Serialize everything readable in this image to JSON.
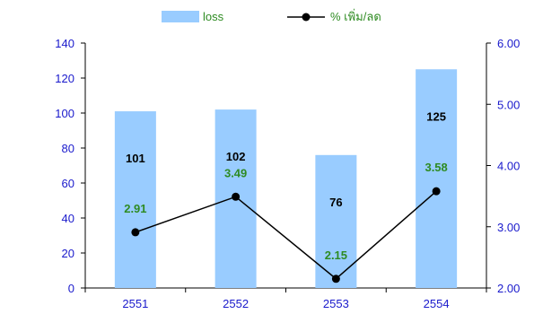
{
  "chart_data": {
    "type": "bar",
    "categories": [
      "2551",
      "2552",
      "2553",
      "2554"
    ],
    "series": [
      {
        "name": "loss",
        "type": "bar",
        "axis": "left",
        "values": [
          101,
          102,
          76,
          125
        ],
        "color": "#99ccff"
      },
      {
        "name": "% เพิ่ม/ลด",
        "type": "line",
        "axis": "right",
        "values": [
          2.91,
          3.49,
          2.15,
          3.58
        ],
        "color": "#000000",
        "label_color": "#2e8b22"
      }
    ],
    "y_left": {
      "min": 0,
      "max": 140,
      "step": 20,
      "ticks": [
        "0",
        "20",
        "40",
        "60",
        "80",
        "100",
        "120",
        "140"
      ]
    },
    "y_right": {
      "min": 2.0,
      "max": 6.0,
      "step": 1.0,
      "ticks": [
        "2.00",
        "3.00",
        "4.00",
        "5.00",
        "6.00"
      ]
    },
    "bar_labels": [
      "101",
      "102",
      "76",
      "125"
    ],
    "line_labels": [
      "2.91",
      "3.49",
      "2.15",
      "3.58"
    ],
    "legend": {
      "position": "top",
      "items": [
        "loss",
        "% เพิ่ม/ลด"
      ]
    },
    "grid": false,
    "colors": {
      "axis_text": "#1a1acc",
      "legend_text": "#2e8b22",
      "bar_label": "#000000"
    }
  }
}
